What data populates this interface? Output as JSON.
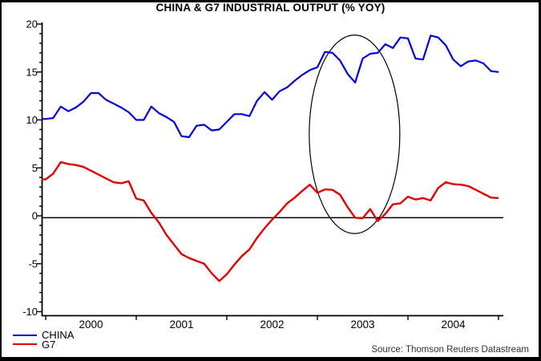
{
  "source": "Source: Thomson Reuters Datastream",
  "legend": {
    "items": [
      {
        "label": "CHINA"
      },
      {
        "label": "G7"
      }
    ]
  },
  "chart_data": {
    "type": "line",
    "title": "CHINA & G7 INDUSTRIAL OUTPUT (% YOY)",
    "x_unit": "month",
    "x_start": "2000-01",
    "x_end": "2005-01",
    "ylim": [
      -10,
      20
    ],
    "y_major_step": 5,
    "y_minor_step": 1,
    "y_tick_labels": [
      20,
      15,
      10,
      5,
      0,
      -5,
      -10
    ],
    "x_year_labels": [
      "2000",
      "2001",
      "2002",
      "2003",
      "2004"
    ],
    "grid": "off",
    "legend_position": "bottom-left",
    "zero_line_value": -0.2,
    "series": [
      {
        "name": "CHINA",
        "color": "#0000d9",
        "values": [
          10.1,
          10.2,
          11.4,
          10.9,
          11.3,
          11.9,
          12.8,
          12.8,
          12.1,
          11.7,
          11.3,
          10.8,
          10.0,
          10.0,
          11.4,
          10.7,
          10.3,
          9.8,
          8.3,
          8.2,
          9.4,
          9.5,
          8.9,
          9.0,
          9.8,
          10.6,
          10.6,
          10.4,
          12.0,
          12.9,
          12.1,
          13.0,
          13.4,
          14.1,
          14.7,
          15.2,
          15.5,
          17.1,
          17.0,
          16.2,
          14.8,
          13.9,
          16.4,
          16.9,
          17.0,
          17.9,
          17.5,
          18.6,
          18.5,
          16.4,
          16.3,
          18.8,
          18.6,
          17.8,
          16.3,
          15.6,
          16.1,
          16.2,
          15.9,
          15.1,
          15.0
        ]
      },
      {
        "name": "G7",
        "color": "#e00000",
        "values": [
          3.8,
          4.4,
          5.6,
          5.4,
          5.3,
          5.1,
          4.7,
          4.3,
          3.9,
          3.5,
          3.4,
          3.6,
          1.8,
          1.6,
          0.3,
          -0.7,
          -2.0,
          -3.0,
          -4.0,
          -4.4,
          -4.7,
          -5.0,
          -6.0,
          -6.8,
          -6.1,
          -5.1,
          -4.2,
          -3.5,
          -2.3,
          -1.3,
          -0.4,
          0.4,
          1.3,
          1.9,
          2.6,
          3.25,
          2.4,
          2.75,
          2.7,
          2.2,
          0.9,
          -0.2,
          -0.25,
          0.7,
          -0.55,
          0.2,
          1.2,
          1.3,
          2.0,
          1.7,
          1.85,
          1.6,
          2.9,
          3.5,
          3.3,
          3.25,
          3.1,
          2.7,
          2.3,
          1.9,
          1.85
        ]
      }
    ],
    "annotation_ellipse": {
      "center_year": 2003.41,
      "center_value": 8.5,
      "radius_years": 0.5,
      "radius_values": 10.35
    }
  }
}
